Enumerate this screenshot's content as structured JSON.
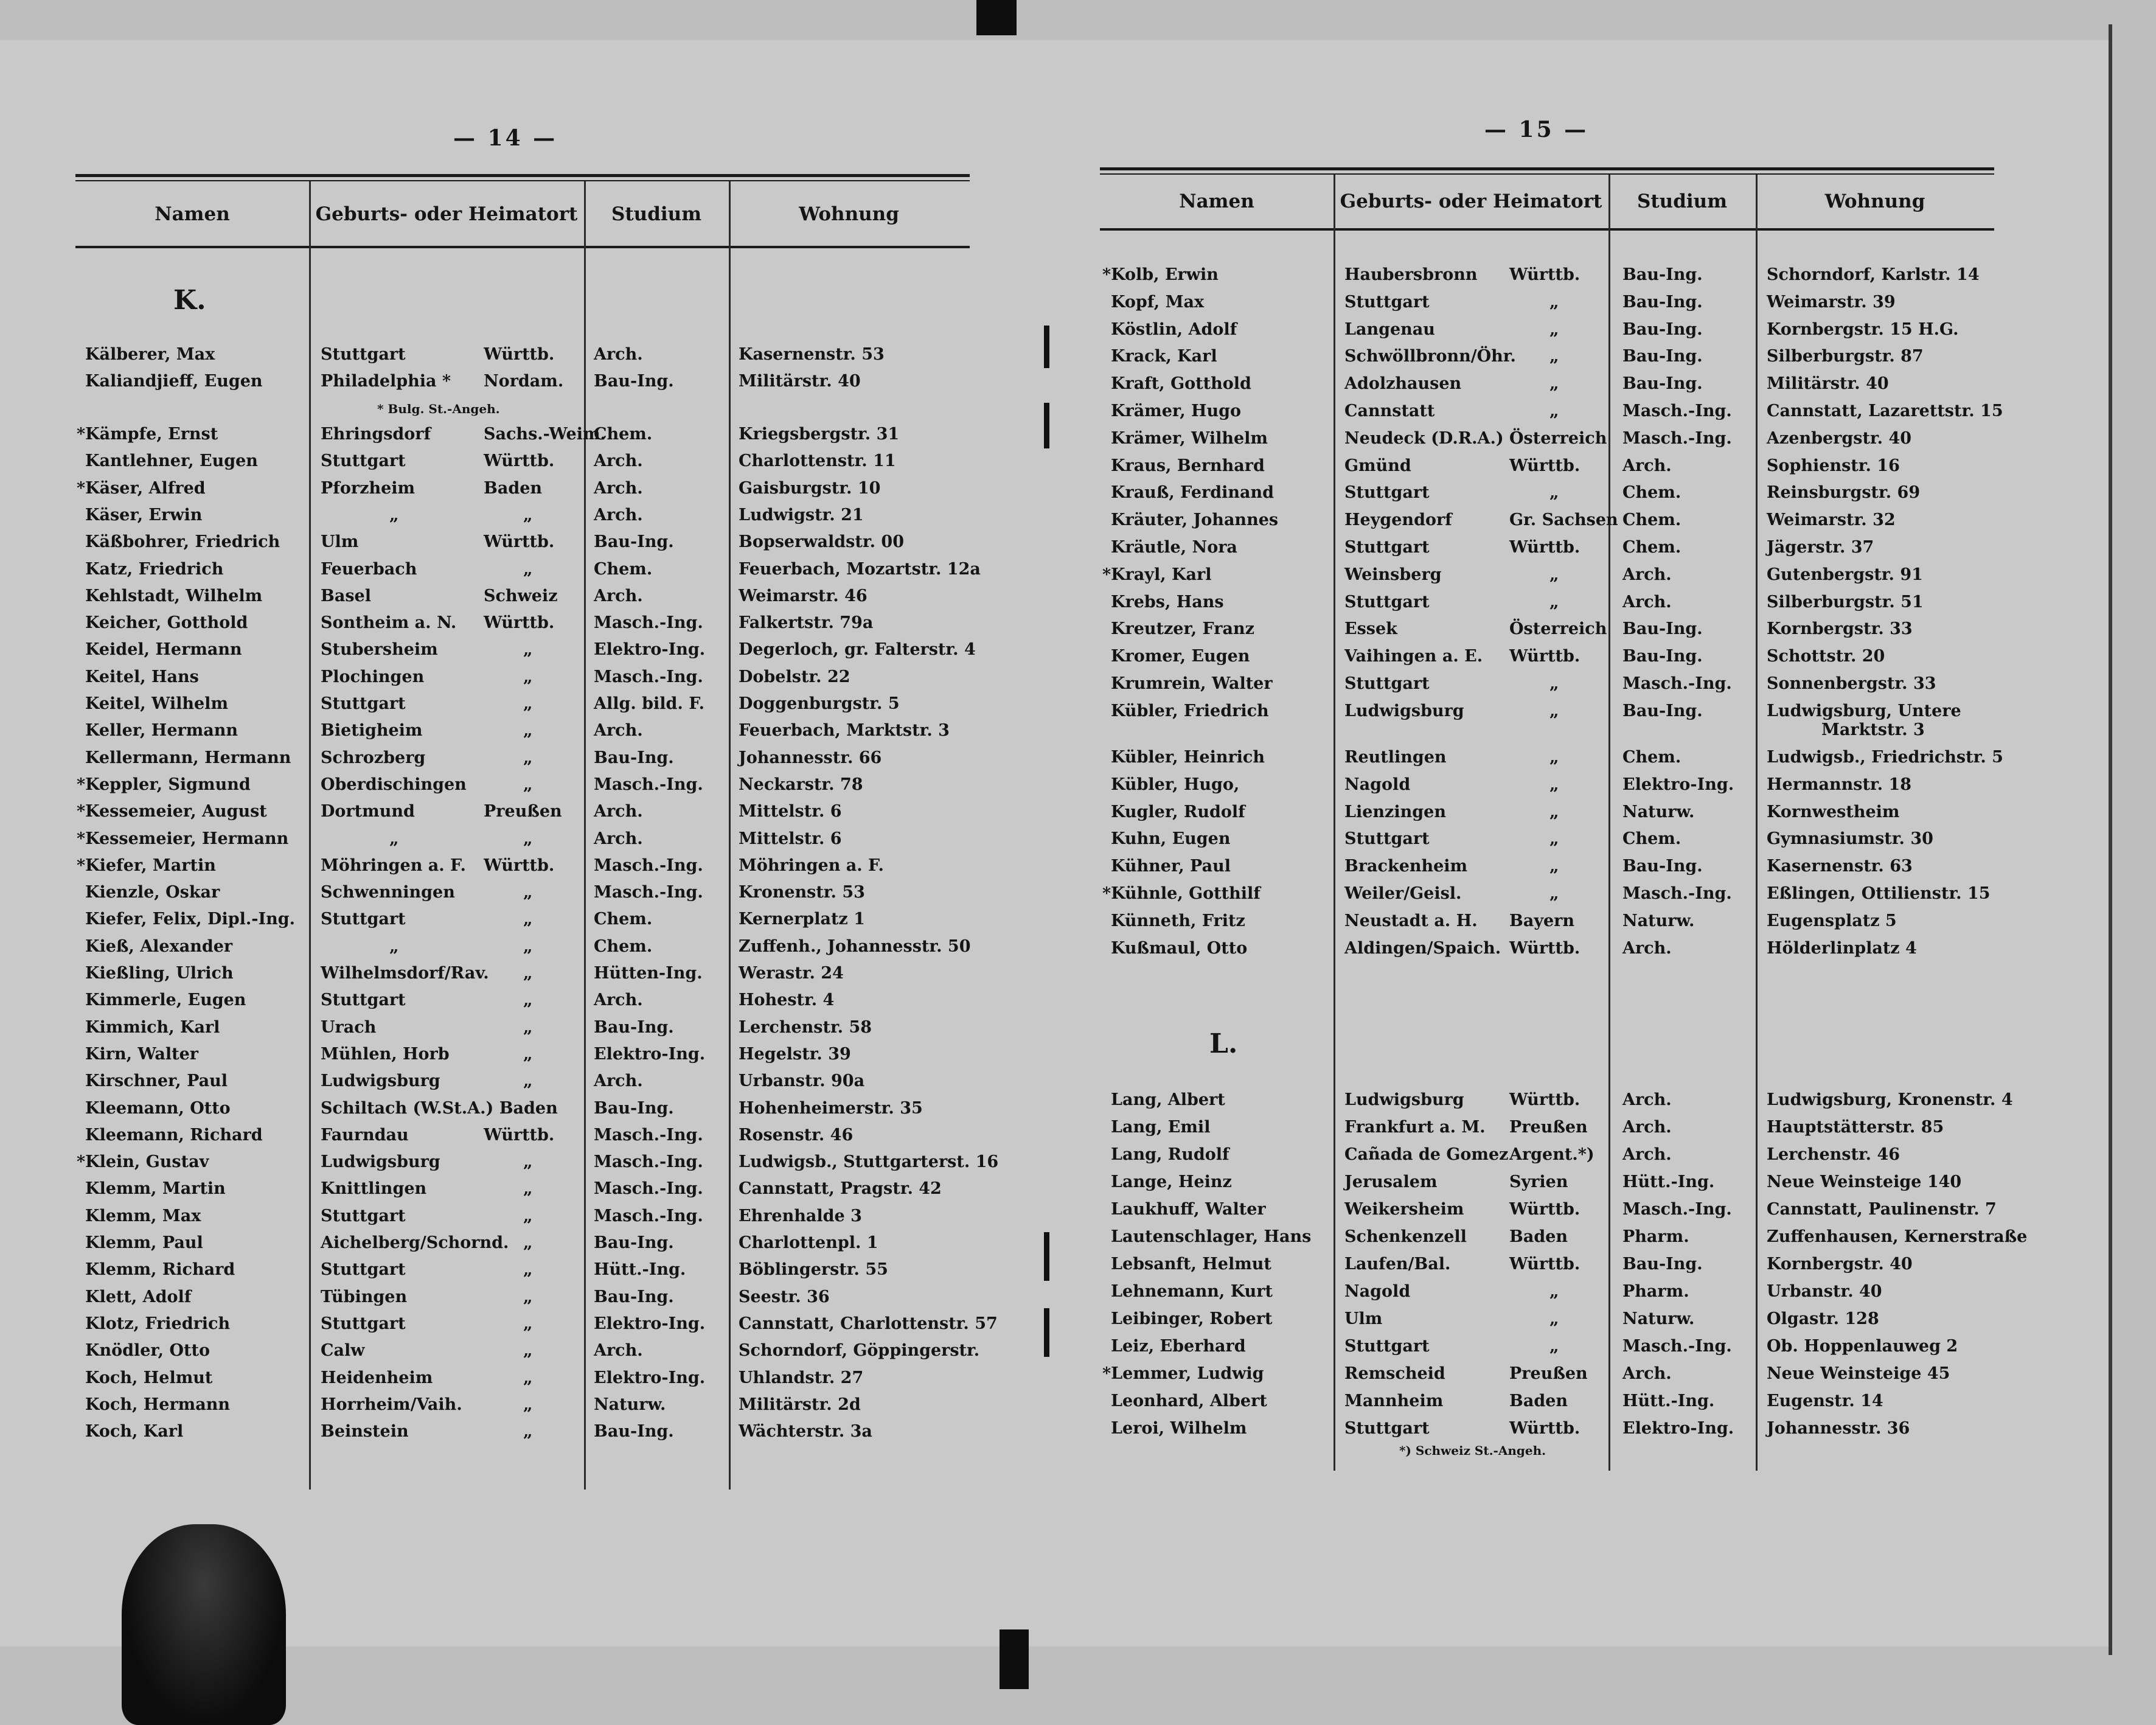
{
  "left_page": {
    "page_number": "— 14 —",
    "headers": {
      "name": "Namen",
      "origin": "Geburts- oder Heimatort",
      "study": "Studium",
      "residence": "Wohnung"
    },
    "letter": "K.",
    "footnote": "* Bulg. St.-Angeh.",
    "rows": [
      {
        "name": "Kälberer, Max",
        "ort": "Stuttgart",
        "land": "Württb.",
        "studium": "Arch.",
        "wohnung": "Kasernenstr. 53"
      },
      {
        "name": "Kaliandjieff, Eugen",
        "ort": "Philadelphia *",
        "land": "Nordam.",
        "studium": "Bau-Ing.",
        "wohnung": "Militärstr. 40"
      },
      {
        "name": "*Kämpfe, Ernst",
        "ort": "Ehringsdorf",
        "land": "Sachs.-Weim.",
        "studium": "Chem.",
        "wohnung": "Kriegsbergstr. 31"
      },
      {
        "name": "Kantlehner, Eugen",
        "ort": "Stuttgart",
        "land": "Württb.",
        "studium": "Arch.",
        "wohnung": "Charlottenstr. 11"
      },
      {
        "name": "*Käser, Alfred",
        "ort": "Pforzheim",
        "land": "Baden",
        "studium": "Arch.",
        "wohnung": "Gaisburgstr. 10"
      },
      {
        "name": "Käser, Erwin",
        "ort": "„",
        "land": "„",
        "studium": "Arch.",
        "wohnung": "Ludwigstr. 21"
      },
      {
        "name": "Käßbohrer, Friedrich",
        "ort": "Ulm",
        "land": "Württb.",
        "studium": "Bau-Ing.",
        "wohnung": "Bopserwaldstr. 00"
      },
      {
        "name": "Katz, Friedrich",
        "ort": "Feuerbach",
        "land": "„",
        "studium": "Chem.",
        "wohnung": "Feuerbach, Mozartstr. 12a"
      },
      {
        "name": "Kehlstadt, Wilhelm",
        "ort": "Basel",
        "land": "Schweiz",
        "studium": "Arch.",
        "wohnung": "Weimarstr. 46"
      },
      {
        "name": "Keicher, Gotthold",
        "ort": "Sontheim a. N.",
        "land": "Württb.",
        "studium": "Masch.-Ing.",
        "wohnung": "Falkertstr. 79a"
      },
      {
        "name": "Keidel, Hermann",
        "ort": "Stubersheim",
        "land": "„",
        "studium": "Elektro-Ing.",
        "wohnung": "Degerloch, gr. Falterstr. 4"
      },
      {
        "name": "Keitel, Hans",
        "ort": "Plochingen",
        "land": "„",
        "studium": "Masch.-Ing.",
        "wohnung": "Dobelstr. 22"
      },
      {
        "name": "Keitel, Wilhelm",
        "ort": "Stuttgart",
        "land": "„",
        "studium": "Allg. bild. F.",
        "wohnung": "Doggenburgstr. 5"
      },
      {
        "name": "Keller, Hermann",
        "ort": "Bietigheim",
        "land": "„",
        "studium": "Arch.",
        "wohnung": "Feuerbach, Marktstr. 3"
      },
      {
        "name": "Kellermann, Hermann",
        "ort": "Schrozberg",
        "land": "„",
        "studium": "Bau-Ing.",
        "wohnung": "Johannesstr. 66"
      },
      {
        "name": "*Keppler, Sigmund",
        "ort": "Oberdischingen",
        "land": "„",
        "studium": "Masch.-Ing.",
        "wohnung": "Neckarstr. 78"
      },
      {
        "name": "*Kessemeier, August",
        "ort": "Dortmund",
        "land": "Preußen",
        "studium": "Arch.",
        "wohnung": "Mittelstr. 6"
      },
      {
        "name": "*Kessemeier, Hermann",
        "ort": "„",
        "land": "„",
        "studium": "Arch.",
        "wohnung": "Mittelstr. 6"
      },
      {
        "name": "*Kiefer, Martin",
        "ort": "Möhringen a. F.",
        "land": "Württb.",
        "studium": "Masch.-Ing.",
        "wohnung": "Möhringen a. F."
      },
      {
        "name": "Kienzle, Oskar",
        "ort": "Schwenningen",
        "land": "„",
        "studium": "Masch.-Ing.",
        "wohnung": "Kronenstr. 53"
      },
      {
        "name": "Kiefer, Felix, Dipl.-Ing.",
        "ort": "Stuttgart",
        "land": "„",
        "studium": "Chem.",
        "wohnung": "Kernerplatz 1"
      },
      {
        "name": "Kieß, Alexander",
        "ort": "„",
        "land": "„",
        "studium": "Chem.",
        "wohnung": "Zuffenh., Johannesstr. 50"
      },
      {
        "name": "Kießling, Ulrich",
        "ort": "Wilhelmsdorf/Rav.",
        "land": "„",
        "studium": "Hütten-Ing.",
        "wohnung": "Werastr. 24"
      },
      {
        "name": "Kimmerle, Eugen",
        "ort": "Stuttgart",
        "land": "„",
        "studium": "Arch.",
        "wohnung": "Hohestr. 4"
      },
      {
        "name": "Kimmich, Karl",
        "ort": "Urach",
        "land": "„",
        "studium": "Bau-Ing.",
        "wohnung": "Lerchenstr. 58"
      },
      {
        "name": "Kirn, Walter",
        "ort": "Mühlen, Horb",
        "land": "„",
        "studium": "Elektro-Ing.",
        "wohnung": "Hegelstr. 39"
      },
      {
        "name": "Kirschner, Paul",
        "ort": "Ludwigsburg",
        "land": "„",
        "studium": "Arch.",
        "wohnung": "Urbanstr. 90a"
      },
      {
        "name": "Kleemann, Otto",
        "ort": "Schiltach (W.St.A.) Baden",
        "land": "",
        "studium": "Bau-Ing.",
        "wohnung": "Hohenheimerstr. 35"
      },
      {
        "name": "Kleemann, Richard",
        "ort": "Faurndau",
        "land": "Württb.",
        "studium": "Masch.-Ing.",
        "wohnung": "Rosenstr. 46"
      },
      {
        "name": "*Klein, Gustav",
        "ort": "Ludwigsburg",
        "land": "„",
        "studium": "Masch.-Ing.",
        "wohnung": "Ludwigsb., Stuttgarterst. 16"
      },
      {
        "name": "Klemm, Martin",
        "ort": "Knittlingen",
        "land": "„",
        "studium": "Masch.-Ing.",
        "wohnung": "Cannstatt, Pragstr. 42"
      },
      {
        "name": "Klemm, Max",
        "ort": "Stuttgart",
        "land": "„",
        "studium": "Masch.-Ing.",
        "wohnung": "Ehrenhalde 3"
      },
      {
        "name": "Klemm, Paul",
        "ort": "Aichelberg/Schornd.",
        "land": "„",
        "studium": "Bau-Ing.",
        "wohnung": "Charlottenpl. 1"
      },
      {
        "name": "Klemm, Richard",
        "ort": "Stuttgart",
        "land": "„",
        "studium": "Hütt.-Ing.",
        "wohnung": "Böblingerstr. 55"
      },
      {
        "name": "Klett, Adolf",
        "ort": "Tübingen",
        "land": "„",
        "studium": "Bau-Ing.",
        "wohnung": "Seestr. 36"
      },
      {
        "name": "Klotz, Friedrich",
        "ort": "Stuttgart",
        "land": "„",
        "studium": "Elektro-Ing.",
        "wohnung": "Cannstatt, Charlottenstr. 57"
      },
      {
        "name": "Knödler, Otto",
        "ort": "Calw",
        "land": "„",
        "studium": "Arch.",
        "wohnung": "Schorndorf, Göppingerstr."
      },
      {
        "name": "Koch, Helmut",
        "ort": "Heidenheim",
        "land": "„",
        "studium": "Elektro-Ing.",
        "wohnung": "Uhlandstr. 27"
      },
      {
        "name": "Koch, Hermann",
        "ort": "Horrheim/Vaih.",
        "land": "„",
        "studium": "Naturw.",
        "wohnung": "Militärstr. 2d"
      },
      {
        "name": "Koch, Karl",
        "ort": "Beinstein",
        "land": "„",
        "studium": "Bau-Ing.",
        "wohnung": "Wächterstr. 3a"
      }
    ]
  },
  "right_page": {
    "page_number": "— 15 —",
    "headers": {
      "name": "Namen",
      "origin": "Geburts- oder Heimatort",
      "study": "Studium",
      "residence": "Wohnung"
    },
    "letter": "L.",
    "footnote": "*) Schweiz  St.-Angeh.",
    "rows_k": [
      {
        "name": "*Kolb, Erwin",
        "ort": "Haubersbronn",
        "land": "Württb.",
        "studium": "Bau-Ing.",
        "wohnung": "Schorndorf, Karlstr. 14"
      },
      {
        "name": "Kopf, Max",
        "ort": "Stuttgart",
        "land": "„",
        "studium": "Bau-Ing.",
        "wohnung": "Weimarstr. 39"
      },
      {
        "name": "Köstlin, Adolf",
        "ort": "Langenau",
        "land": "„",
        "studium": "Bau-Ing.",
        "wohnung": "Kornbergstr. 15 H.G."
      },
      {
        "name": "Krack, Karl",
        "ort": "Schwöllbronn/Öhr.",
        "land": "„",
        "studium": "Bau-Ing.",
        "wohnung": "Silberburgstr. 87"
      },
      {
        "name": "Kraft, Gotthold",
        "ort": "Adolzhausen",
        "land": "„",
        "studium": "Bau-Ing.",
        "wohnung": "Militärstr. 40"
      },
      {
        "name": "Krämer, Hugo",
        "ort": "Cannstatt",
        "land": "„",
        "studium": "Masch.-Ing.",
        "wohnung": "Cannstatt, Lazarettstr. 15"
      },
      {
        "name": "Krämer, Wilhelm",
        "ort": "Neudeck (D.R.A.)",
        "land": "Österreich",
        "studium": "Masch.-Ing.",
        "wohnung": "Azenbergstr. 40"
      },
      {
        "name": "Kraus, Bernhard",
        "ort": "Gmünd",
        "land": "Württb.",
        "studium": "Arch.",
        "wohnung": "Sophienstr. 16"
      },
      {
        "name": "Krauß, Ferdinand",
        "ort": "Stuttgart",
        "land": "„",
        "studium": "Chem.",
        "wohnung": "Reinsburgstr. 69"
      },
      {
        "name": "Kräuter, Johannes",
        "ort": "Heygendorf",
        "land": "Gr. Sachsen",
        "studium": "Chem.",
        "wohnung": "Weimarstr. 32"
      },
      {
        "name": "Kräutle, Nora",
        "ort": "Stuttgart",
        "land": "Württb.",
        "studium": "Chem.",
        "wohnung": "Jägerstr. 37"
      },
      {
        "name": "*Krayl, Karl",
        "ort": "Weinsberg",
        "land": "„",
        "studium": "Arch.",
        "wohnung": "Gutenbergstr. 91"
      },
      {
        "name": "Krebs, Hans",
        "ort": "Stuttgart",
        "land": "„",
        "studium": "Arch.",
        "wohnung": "Silberburgstr. 51"
      },
      {
        "name": "Kreutzer, Franz",
        "ort": "Essek",
        "land": "Österreich",
        "studium": "Bau-Ing.",
        "wohnung": "Kornbergstr. 33"
      },
      {
        "name": "Kromer, Eugen",
        "ort": "Vaihingen a. E.",
        "land": "Württb.",
        "studium": "Bau-Ing.",
        "wohnung": "Schottstr. 20"
      },
      {
        "name": "Krumrein, Walter",
        "ort": "Stuttgart",
        "land": "„",
        "studium": "Masch.-Ing.",
        "wohnung": "Sonnenbergstr. 33"
      },
      {
        "name": "Kübler, Friedrich",
        "ort": "Ludwigsburg",
        "land": "„",
        "studium": "Bau-Ing.",
        "wohnung": "Ludwigsburg, Untere",
        "wohnung2": "Marktstr. 3"
      },
      {
        "name": "Kübler, Heinrich",
        "ort": "Reutlingen",
        "land": "„",
        "studium": "Chem.",
        "wohnung": "Ludwigsb., Friedrichstr. 5"
      },
      {
        "name": "Kübler, Hugo,",
        "ort": "Nagold",
        "land": "„",
        "studium": "Elektro-Ing.",
        "wohnung": "Hermannstr. 18"
      },
      {
        "name": "Kugler, Rudolf",
        "ort": "Lienzingen",
        "land": "„",
        "studium": "Naturw.",
        "wohnung": "Kornwestheim"
      },
      {
        "name": "Kuhn, Eugen",
        "ort": "Stuttgart",
        "land": "„",
        "studium": "Chem.",
        "wohnung": "Gymnasiumstr. 30"
      },
      {
        "name": "Kühner, Paul",
        "ort": "Brackenheim",
        "land": "„",
        "studium": "Bau-Ing.",
        "wohnung": "Kasernenstr. 63"
      },
      {
        "name": "*Kühnle, Gotthilf",
        "ort": "Weiler/Geisl.",
        "land": "„",
        "studium": "Masch.-Ing.",
        "wohnung": "Eßlingen, Ottilienstr. 15"
      },
      {
        "name": "Künneth, Fritz",
        "ort": "Neustadt a. H.",
        "land": "Bayern",
        "studium": "Naturw.",
        "wohnung": "Eugensplatz 5"
      },
      {
        "name": "Kußmaul, Otto",
        "ort": "Aldingen/Spaich.",
        "land": "Württb.",
        "studium": "Arch.",
        "wohnung": "Hölderlinplatz 4"
      }
    ],
    "rows_l": [
      {
        "name": "Lang, Albert",
        "ort": "Ludwigsburg",
        "land": "Württb.",
        "studium": "Arch.",
        "wohnung": "Ludwigsburg, Kronenstr. 4"
      },
      {
        "name": "Lang, Emil",
        "ort": "Frankfurt a. M.",
        "land": "Preußen",
        "studium": "Arch.",
        "wohnung": "Hauptstätterstr. 85"
      },
      {
        "name": "Lang, Rudolf",
        "ort": "Cañada de Gomez",
        "land": "Argent.*)",
        "studium": "Arch.",
        "wohnung": "Lerchenstr. 46"
      },
      {
        "name": "Lange, Heinz",
        "ort": "Jerusalem",
        "land": "Syrien",
        "studium": "Hütt.-Ing.",
        "wohnung": "Neue Weinsteige 140"
      },
      {
        "name": "Laukhuff, Walter",
        "ort": "Weikersheim",
        "land": "Württb.",
        "studium": "Masch.-Ing.",
        "wohnung": "Cannstatt, Paulinenstr. 7"
      },
      {
        "name": "Lautenschlager, Hans",
        "ort": "Schenkenzell",
        "land": "Baden",
        "studium": "Pharm.",
        "wohnung": "Zuffenhausen, Kernerstraße"
      },
      {
        "name": "Lebsanft, Helmut",
        "ort": "Laufen/Bal.",
        "land": "Württb.",
        "studium": "Bau-Ing.",
        "wohnung": "Kornbergstr. 40"
      },
      {
        "name": "Lehnemann, Kurt",
        "ort": "Nagold",
        "land": "„",
        "studium": "Pharm.",
        "wohnung": "Urbanstr. 40"
      },
      {
        "name": "Leibinger, Robert",
        "ort": "Ulm",
        "land": "„",
        "studium": "Naturw.",
        "wohnung": "Olgastr. 128"
      },
      {
        "name": "Leiz, Eberhard",
        "ort": "Stuttgart",
        "land": "„",
        "studium": "Masch.-Ing.",
        "wohnung": "Ob. Hoppenlauweg 2"
      },
      {
        "name": "*Lemmer, Ludwig",
        "ort": "Remscheid",
        "land": "Preußen",
        "studium": "Arch.",
        "wohnung": "Neue Weinsteige 45"
      },
      {
        "name": "Leonhard, Albert",
        "ort": "Mannheim",
        "land": "Baden",
        "studium": "Hütt.-Ing.",
        "wohnung": "Eugenstr. 14"
      },
      {
        "name": "Leroi, Wilhelm",
        "ort": "Stuttgart",
        "land": "Württb.",
        "studium": "Elektro-Ing.",
        "wohnung": "Johannesstr. 36"
      }
    ]
  }
}
